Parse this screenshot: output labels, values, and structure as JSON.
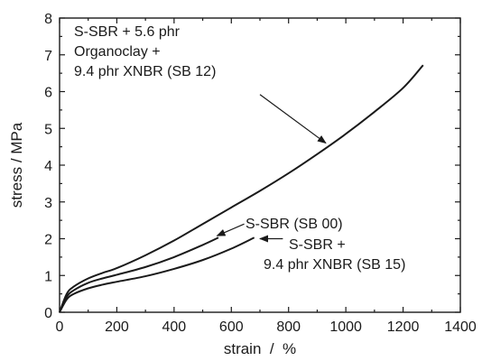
{
  "chart_data": {
    "type": "line",
    "xlabel": "strain  /  %",
    "ylabel": "stress / MPa",
    "xlim": [
      0,
      1400
    ],
    "ylim": [
      0,
      8
    ],
    "xticks": [
      "0",
      "200",
      "400",
      "600",
      "800",
      "1000",
      "1200",
      "1400"
    ],
    "yticks": [
      "0",
      "1",
      "2",
      "3",
      "4",
      "5",
      "6",
      "7",
      "8"
    ],
    "grid": false,
    "series": [
      {
        "name": "S-SBR + 5.6 phr Organoclay + 9.4 phr XNBR (SB 12)",
        "x": [
          0,
          25,
          50,
          100,
          150,
          200,
          300,
          400,
          500,
          600,
          700,
          800,
          900,
          1000,
          1100,
          1200,
          1270
        ],
        "y": [
          0,
          0.5,
          0.7,
          0.92,
          1.07,
          1.2,
          1.55,
          1.95,
          2.4,
          2.85,
          3.3,
          3.78,
          4.3,
          4.85,
          5.45,
          6.1,
          6.72
        ]
      },
      {
        "name": "S-SBR (SB 00)",
        "x": [
          0,
          25,
          50,
          100,
          150,
          200,
          300,
          400,
          500,
          555
        ],
        "y": [
          0,
          0.42,
          0.6,
          0.8,
          0.92,
          1.02,
          1.23,
          1.5,
          1.83,
          2.03
        ]
      },
      {
        "name": "S-SBR + 9.4 phr XNBR (SB 15)",
        "x": [
          0,
          25,
          50,
          100,
          150,
          200,
          300,
          400,
          500,
          600,
          680
        ],
        "y": [
          0,
          0.35,
          0.5,
          0.65,
          0.75,
          0.83,
          0.98,
          1.18,
          1.42,
          1.73,
          2.03
        ]
      }
    ],
    "annotations": [
      {
        "lines": [
          "S-SBR + 5.6 phr",
          "Organoclay +",
          "9.4 phr XNBR (SB 12)"
        ],
        "arrow_from": [
          700,
          5.92
        ],
        "arrow_to": [
          930,
          4.6
        ]
      },
      {
        "lines": [
          "S-SBR (SB 00)"
        ],
        "arrow_from": [
          645,
          2.4
        ],
        "arrow_to": [
          550,
          2.08
        ]
      },
      {
        "lines": [
          "S-SBR +",
          "9.4 phr XNBR (SB 15)"
        ],
        "arrow_from": [
          780,
          2.0
        ],
        "arrow_to": [
          700,
          2.0
        ]
      }
    ]
  }
}
